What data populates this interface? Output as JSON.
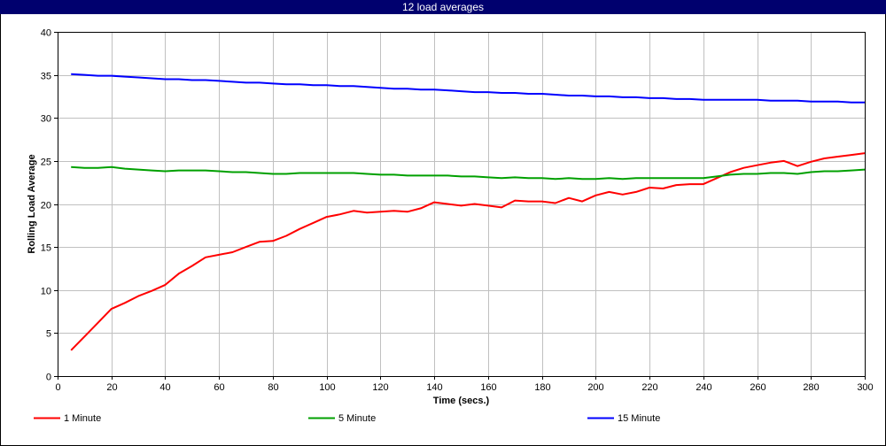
{
  "chart_data": {
    "type": "line",
    "title": "12 load averages",
    "xlabel": "Time (secs.)",
    "ylabel": "Rolling Load Average",
    "xlim": [
      0,
      300
    ],
    "ylim": [
      0,
      40
    ],
    "xticks": [
      0,
      20,
      40,
      60,
      80,
      100,
      120,
      140,
      160,
      180,
      200,
      220,
      240,
      260,
      280,
      300
    ],
    "yticks": [
      0,
      5,
      10,
      15,
      20,
      25,
      30,
      35,
      40
    ],
    "grid": true,
    "legend_position": "bottom",
    "x": [
      5,
      10,
      15,
      20,
      25,
      30,
      35,
      40,
      45,
      50,
      55,
      60,
      65,
      70,
      75,
      80,
      85,
      90,
      95,
      100,
      105,
      110,
      115,
      120,
      125,
      130,
      135,
      140,
      145,
      150,
      155,
      160,
      165,
      170,
      175,
      180,
      185,
      190,
      195,
      200,
      205,
      210,
      215,
      220,
      225,
      230,
      235,
      240,
      245,
      250,
      255,
      260,
      265,
      270,
      275,
      280,
      285,
      290,
      295,
      300
    ],
    "series": [
      {
        "name": "1 Minute",
        "color": "#ff0000",
        "values": [
          3.0,
          4.6,
          6.2,
          7.8,
          8.5,
          9.3,
          9.9,
          10.6,
          11.9,
          12.8,
          13.8,
          14.1,
          14.4,
          15.0,
          15.6,
          15.7,
          16.3,
          17.1,
          17.8,
          18.5,
          18.8,
          19.2,
          19.0,
          19.1,
          19.2,
          19.1,
          19.5,
          20.2,
          20.0,
          19.8,
          20.0,
          19.8,
          19.6,
          20.4,
          20.3,
          20.3,
          20.1,
          20.7,
          20.3,
          21.0,
          21.4,
          21.1,
          21.4,
          21.9,
          21.8,
          22.2,
          22.3,
          22.3,
          23.0,
          23.7,
          24.2,
          24.5,
          24.8,
          25.0,
          24.4,
          24.9,
          25.3,
          25.5,
          25.7,
          25.9
        ]
      },
      {
        "name": "5 Minute",
        "color": "#00a000",
        "values": [
          24.3,
          24.2,
          24.2,
          24.3,
          24.1,
          24.0,
          23.9,
          23.8,
          23.9,
          23.9,
          23.9,
          23.8,
          23.7,
          23.7,
          23.6,
          23.5,
          23.5,
          23.6,
          23.6,
          23.6,
          23.6,
          23.6,
          23.5,
          23.4,
          23.4,
          23.3,
          23.3,
          23.3,
          23.3,
          23.2,
          23.2,
          23.1,
          23.0,
          23.1,
          23.0,
          23.0,
          22.9,
          23.0,
          22.9,
          22.9,
          23.0,
          22.9,
          23.0,
          23.0,
          23.0,
          23.0,
          23.0,
          23.0,
          23.2,
          23.4,
          23.5,
          23.5,
          23.6,
          23.6,
          23.5,
          23.7,
          23.8,
          23.8,
          23.9,
          24.0
        ]
      },
      {
        "name": "15 Minute",
        "color": "#0000ff",
        "values": [
          35.1,
          35.0,
          34.9,
          34.9,
          34.8,
          34.7,
          34.6,
          34.5,
          34.5,
          34.4,
          34.4,
          34.3,
          34.2,
          34.1,
          34.1,
          34.0,
          33.9,
          33.9,
          33.8,
          33.8,
          33.7,
          33.7,
          33.6,
          33.5,
          33.4,
          33.4,
          33.3,
          33.3,
          33.2,
          33.1,
          33.0,
          33.0,
          32.9,
          32.9,
          32.8,
          32.8,
          32.7,
          32.6,
          32.6,
          32.5,
          32.5,
          32.4,
          32.4,
          32.3,
          32.3,
          32.2,
          32.2,
          32.1,
          32.1,
          32.1,
          32.1,
          32.1,
          32.0,
          32.0,
          32.0,
          31.9,
          31.9,
          31.9,
          31.8,
          31.8
        ]
      }
    ]
  }
}
